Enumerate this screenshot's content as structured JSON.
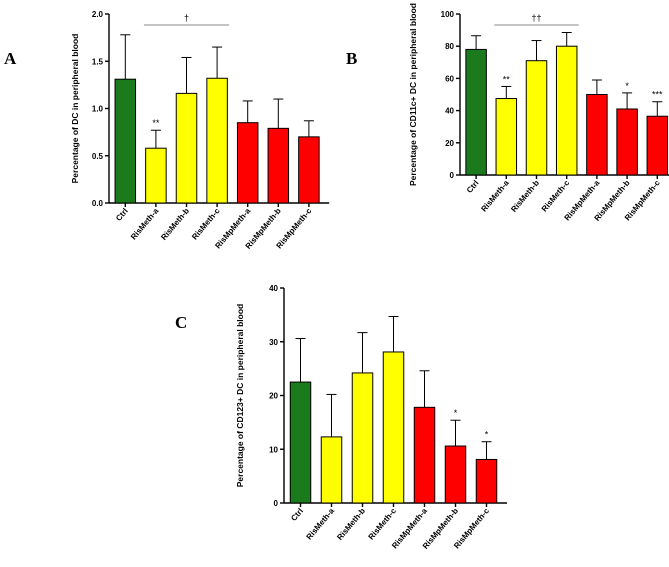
{
  "colors": {
    "ctrl": "#1b7a1b",
    "rismeth": "#ffff00",
    "rismpmeth": "#ff0000"
  },
  "chart_data": [
    {
      "panel": "A",
      "type": "bar",
      "ylabel": "Percentage of DC in peripheral blood",
      "ylim": [
        0,
        2.0
      ],
      "yticks": [
        "0.0",
        "0.5",
        "1.0",
        "1.5",
        "2.0"
      ],
      "ytick_values": [
        0,
        0.5,
        1.0,
        1.5,
        2.0
      ],
      "categories": [
        "Ctrl",
        "RisMeth-a",
        "RisMeth-b",
        "RisMeth-c",
        "RisMpMeth-a",
        "RisMpMeth-b",
        "RisMpMeth-c"
      ],
      "values": [
        1.31,
        0.58,
        1.16,
        1.32,
        0.85,
        0.79,
        0.7
      ],
      "errors": [
        0.47,
        0.19,
        0.38,
        0.33,
        0.23,
        0.31,
        0.17
      ],
      "groups": [
        "ctrl",
        "rismeth",
        "rismeth",
        "rismeth",
        "rismpmeth",
        "rismpmeth",
        "rismpmeth"
      ],
      "significance": [
        "",
        "**",
        "",
        "",
        "",
        "",
        ""
      ],
      "bracket": {
        "label": "†",
        "from": 1,
        "to": 3
      }
    },
    {
      "panel": "B",
      "type": "bar",
      "ylabel": "Percentage of CD11c+ DC in peripheral blood",
      "ylim": [
        0,
        100
      ],
      "yticks": [
        "0",
        "20",
        "40",
        "60",
        "80",
        "100"
      ],
      "ytick_values": [
        0,
        20,
        40,
        60,
        80,
        100
      ],
      "categories": [
        "Ctrl",
        "RisMeth-a",
        "RisMeth-b",
        "RisMeth-c",
        "RisMpMeth-a",
        "RisMpMeth-b",
        "RisMpMeth-c"
      ],
      "values": [
        78,
        47.5,
        71,
        80,
        50,
        41,
        36.5
      ],
      "errors": [
        8.5,
        7.5,
        12.5,
        8.5,
        9,
        10,
        9
      ],
      "groups": [
        "ctrl",
        "rismeth",
        "rismeth",
        "rismeth",
        "rismpmeth",
        "rismpmeth",
        "rismpmeth"
      ],
      "significance": [
        "",
        "**",
        "",
        "",
        "",
        "*",
        "***"
      ],
      "bracket": {
        "label": "††",
        "from": 1,
        "to": 3
      }
    },
    {
      "panel": "C",
      "type": "bar",
      "ylabel": "Percentage of CD123+ DC in peripheral blood",
      "ylim": [
        0,
        40
      ],
      "yticks": [
        "0",
        "10",
        "20",
        "30",
        "40"
      ],
      "ytick_values": [
        0,
        10,
        20,
        30,
        40
      ],
      "categories": [
        "Ctrl",
        "RisMeth-a",
        "RisMeth-b",
        "RisMeth-c",
        "RisMpMeth-a",
        "RisMpMeth-b",
        "RisMpMeth-c"
      ],
      "values": [
        22.5,
        12.3,
        24.2,
        28.1,
        17.8,
        10.6,
        8.1
      ],
      "errors": [
        8.1,
        7.9,
        7.5,
        6.6,
        6.8,
        4.8,
        3.3
      ],
      "groups": [
        "ctrl",
        "rismeth",
        "rismeth",
        "rismeth",
        "rismpmeth",
        "rismpmeth",
        "rismpmeth"
      ],
      "significance": [
        "",
        "",
        "",
        "",
        "",
        "*",
        "*"
      ],
      "bracket": null
    }
  ]
}
